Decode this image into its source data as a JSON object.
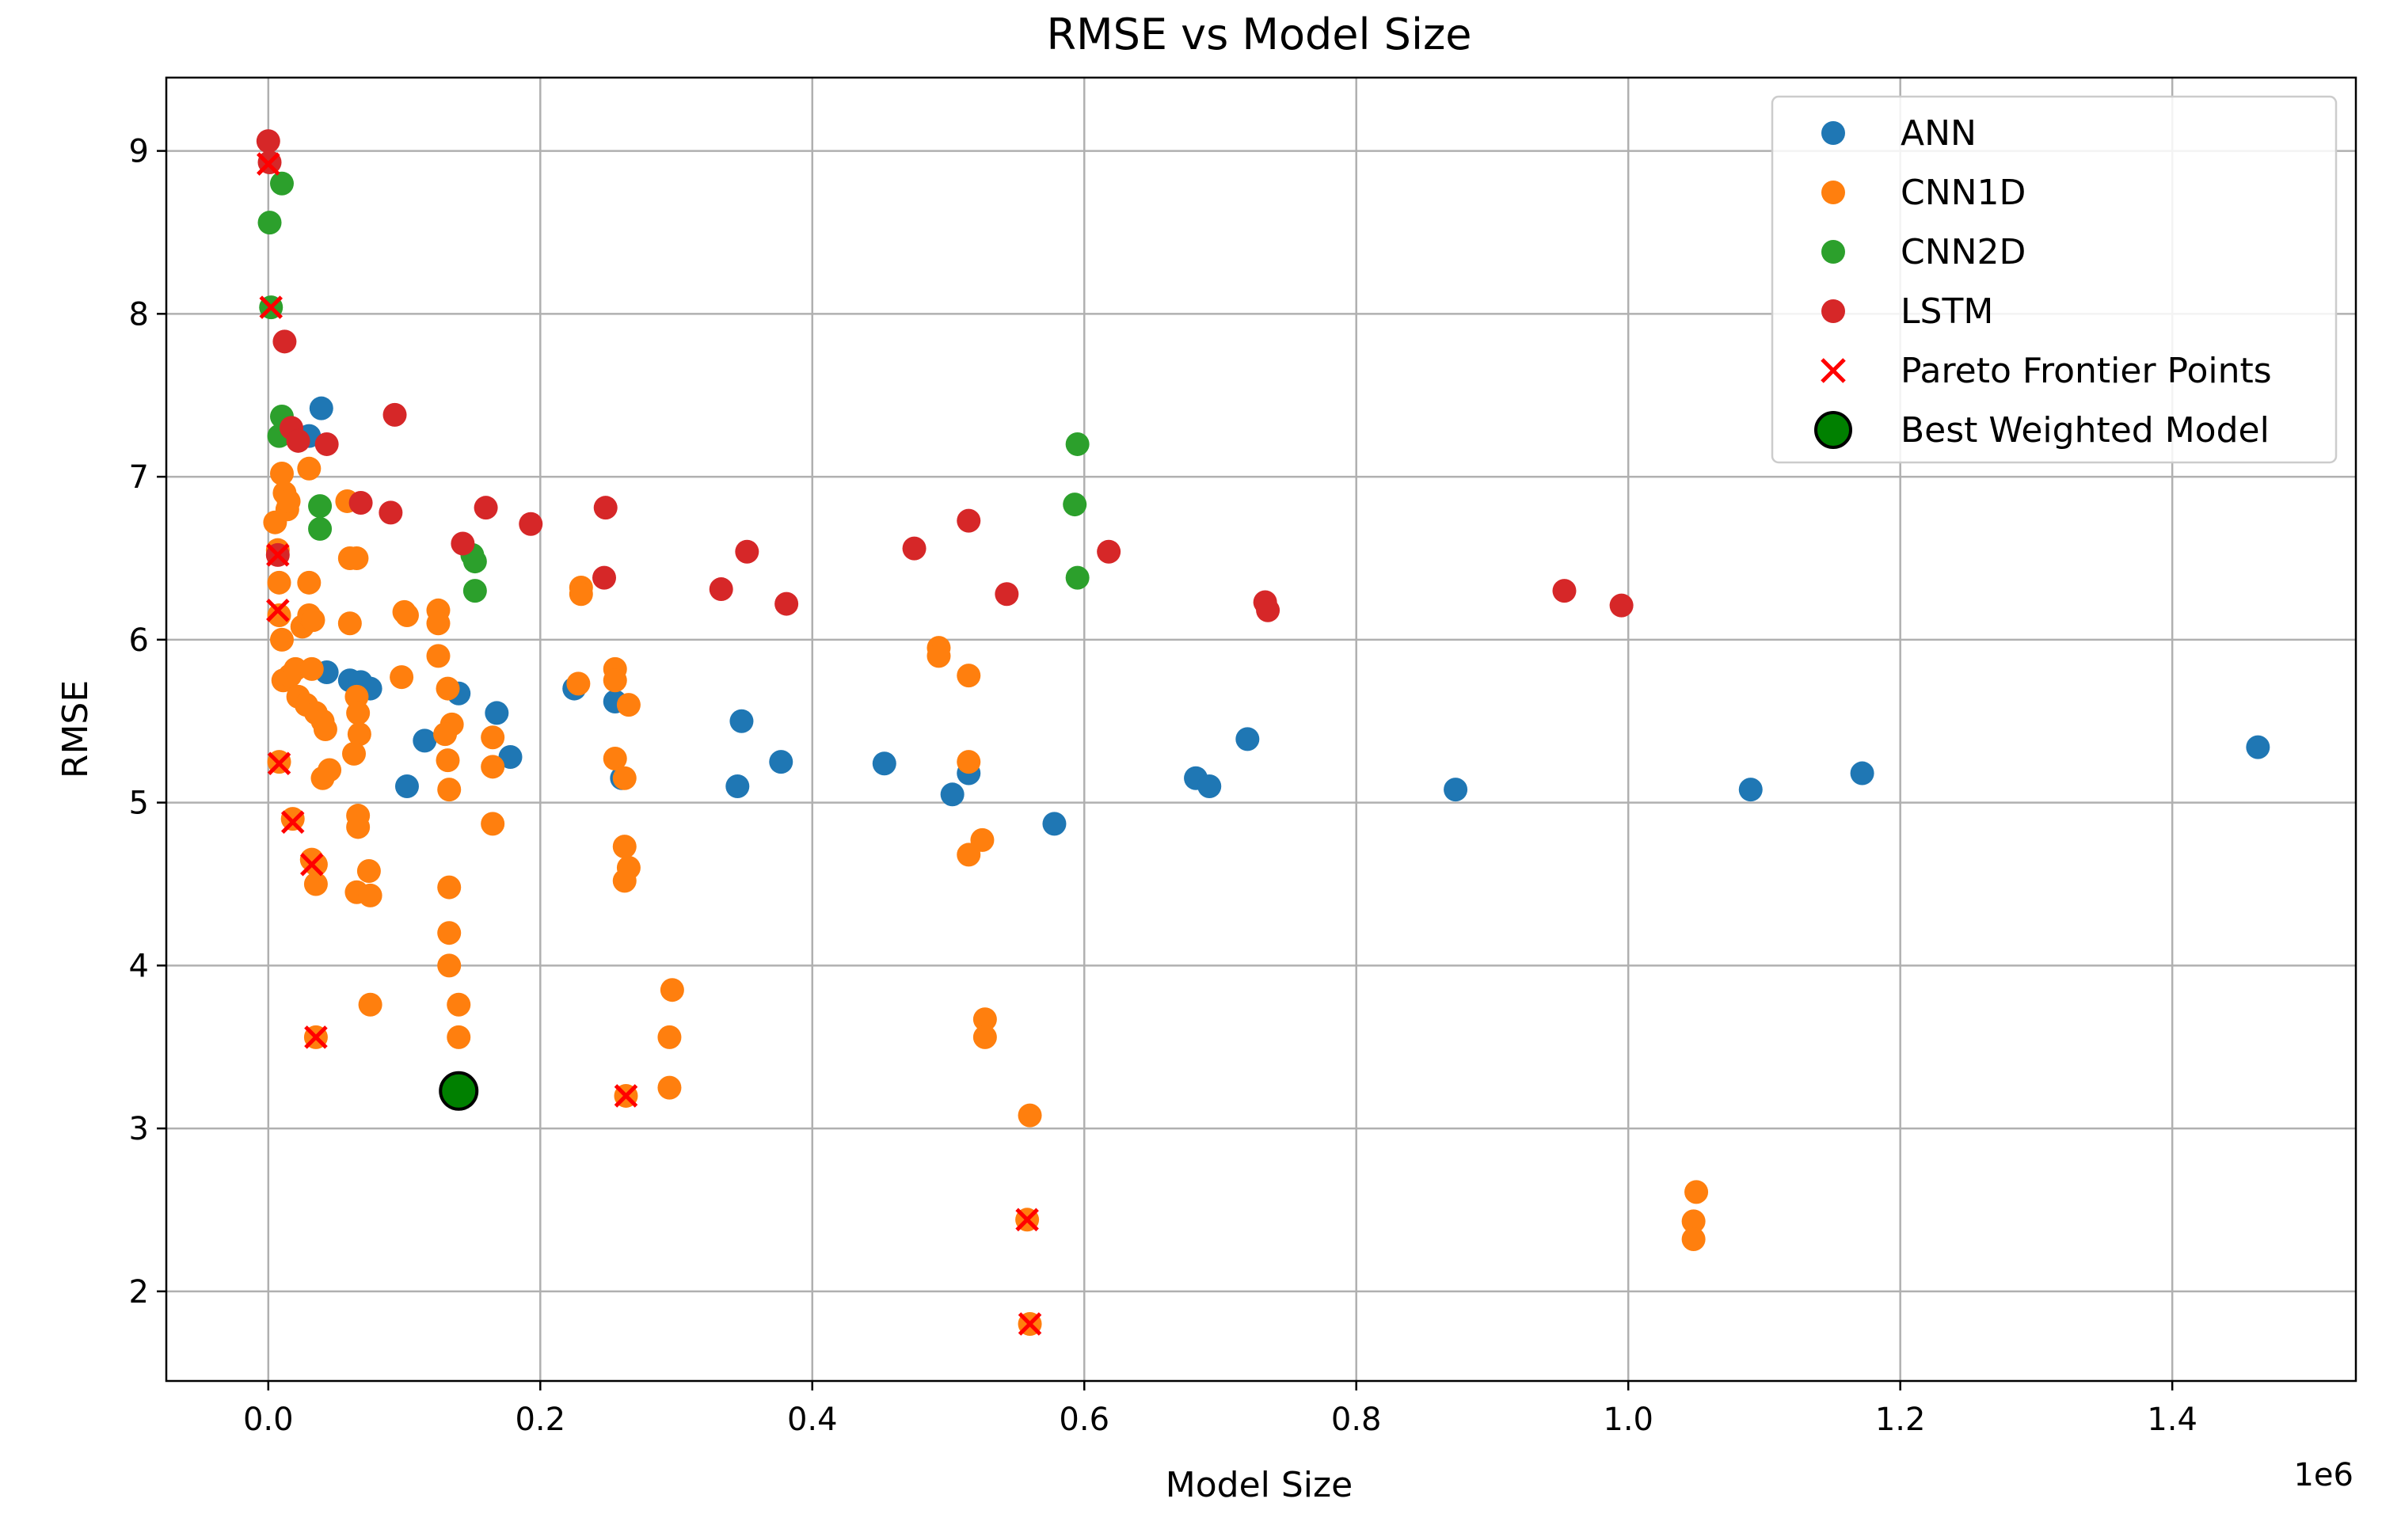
{
  "chart_data": {
    "type": "scatter",
    "title": "RMSE vs Model Size",
    "xlabel": "Model Size",
    "ylabel": "RMSE",
    "x_offset_text": "1e6",
    "xlim": [
      -0.075,
      1.535
    ],
    "ylim": [
      1.45,
      9.45
    ],
    "xticks": [
      0.0,
      0.2,
      0.4,
      0.6,
      0.8,
      1.0,
      1.2,
      1.4
    ],
    "xtick_labels": [
      "0.0",
      "0.2",
      "0.4",
      "0.6",
      "0.8",
      "1.0",
      "1.2",
      "1.4"
    ],
    "yticks": [
      2,
      3,
      4,
      5,
      6,
      7,
      8,
      9
    ],
    "ytick_labels": [
      "2",
      "3",
      "4",
      "5",
      "6",
      "7",
      "8",
      "9"
    ],
    "grid": true,
    "legend_position": "top-right",
    "series": [
      {
        "name": "ANN",
        "color": "#1f77b4",
        "marker": "circle",
        "points": [
          [
            0.039,
            7.42
          ],
          [
            0.03,
            7.25
          ],
          [
            0.043,
            5.8
          ],
          [
            0.06,
            5.75
          ],
          [
            0.068,
            5.74
          ],
          [
            0.075,
            5.7
          ],
          [
            0.115,
            5.38
          ],
          [
            0.102,
            5.1
          ],
          [
            0.14,
            5.67
          ],
          [
            0.168,
            5.55
          ],
          [
            0.178,
            5.28
          ],
          [
            0.225,
            5.7
          ],
          [
            0.255,
            5.62
          ],
          [
            0.26,
            5.15
          ],
          [
            0.348,
            5.5
          ],
          [
            0.345,
            5.1
          ],
          [
            0.377,
            5.25
          ],
          [
            0.453,
            5.24
          ],
          [
            0.503,
            5.05
          ],
          [
            0.515,
            5.18
          ],
          [
            0.578,
            4.87
          ],
          [
            0.682,
            5.15
          ],
          [
            0.692,
            5.1
          ],
          [
            0.72,
            5.39
          ],
          [
            0.873,
            5.08
          ],
          [
            1.09,
            5.08
          ],
          [
            1.172,
            5.18
          ],
          [
            1.463,
            5.34
          ]
        ]
      },
      {
        "name": "CNN1D",
        "color": "#ff7f0e",
        "marker": "circle",
        "points": [
          [
            0.005,
            6.72
          ],
          [
            0.007,
            6.55
          ],
          [
            0.008,
            6.35
          ],
          [
            0.008,
            6.15
          ],
          [
            0.01,
            7.02
          ],
          [
            0.012,
            6.9
          ],
          [
            0.014,
            6.8
          ],
          [
            0.015,
            6.85
          ],
          [
            0.01,
            6.0
          ],
          [
            0.011,
            5.75
          ],
          [
            0.016,
            5.78
          ],
          [
            0.02,
            5.82
          ],
          [
            0.022,
            5.65
          ],
          [
            0.025,
            6.08
          ],
          [
            0.028,
            5.6
          ],
          [
            0.03,
            6.35
          ],
          [
            0.03,
            7.05
          ],
          [
            0.03,
            6.15
          ],
          [
            0.033,
            6.12
          ],
          [
            0.032,
            5.82
          ],
          [
            0.035,
            5.55
          ],
          [
            0.04,
            5.5
          ],
          [
            0.042,
            5.45
          ],
          [
            0.04,
            5.15
          ],
          [
            0.045,
            5.2
          ],
          [
            0.058,
            6.85
          ],
          [
            0.06,
            6.1
          ],
          [
            0.06,
            6.5
          ],
          [
            0.065,
            6.5
          ],
          [
            0.065,
            5.65
          ],
          [
            0.066,
            5.55
          ],
          [
            0.067,
            5.42
          ],
          [
            0.063,
            5.3
          ],
          [
            0.066,
            4.92
          ],
          [
            0.066,
            4.85
          ],
          [
            0.065,
            4.45
          ],
          [
            0.074,
            4.58
          ],
          [
            0.075,
            4.43
          ],
          [
            0.035,
            4.5
          ],
          [
            0.035,
            4.62
          ],
          [
            0.075,
            3.76
          ],
          [
            0.1,
            6.17
          ],
          [
            0.102,
            6.15
          ],
          [
            0.098,
            5.77
          ],
          [
            0.125,
            6.18
          ],
          [
            0.125,
            6.1
          ],
          [
            0.125,
            5.9
          ],
          [
            0.132,
            5.7
          ],
          [
            0.135,
            5.48
          ],
          [
            0.13,
            5.42
          ],
          [
            0.132,
            5.26
          ],
          [
            0.133,
            5.08
          ],
          [
            0.133,
            4.48
          ],
          [
            0.133,
            4.2
          ],
          [
            0.133,
            4.0
          ],
          [
            0.14,
            3.76
          ],
          [
            0.14,
            3.56
          ],
          [
            0.165,
            5.4
          ],
          [
            0.165,
            5.22
          ],
          [
            0.165,
            4.87
          ],
          [
            0.23,
            6.32
          ],
          [
            0.23,
            6.28
          ],
          [
            0.228,
            5.73
          ],
          [
            0.255,
            5.82
          ],
          [
            0.255,
            5.75
          ],
          [
            0.255,
            5.27
          ],
          [
            0.262,
            5.15
          ],
          [
            0.265,
            5.6
          ],
          [
            0.262,
            4.73
          ],
          [
            0.265,
            4.6
          ],
          [
            0.262,
            4.52
          ],
          [
            0.297,
            3.85
          ],
          [
            0.295,
            3.56
          ],
          [
            0.295,
            3.25
          ],
          [
            0.493,
            5.95
          ],
          [
            0.493,
            5.9
          ],
          [
            0.515,
            5.78
          ],
          [
            0.515,
            5.25
          ],
          [
            0.515,
            4.68
          ],
          [
            0.525,
            4.77
          ],
          [
            0.527,
            3.67
          ],
          [
            0.527,
            3.56
          ],
          [
            0.56,
            3.08
          ],
          [
            0.558,
            2.44
          ],
          [
            0.56,
            1.8
          ],
          [
            1.05,
            2.61
          ],
          [
            1.048,
            2.43
          ],
          [
            1.048,
            2.32
          ],
          [
            0.018,
            4.9
          ],
          [
            0.032,
            4.65
          ],
          [
            0.008,
            5.25
          ],
          [
            0.035,
            3.56
          ],
          [
            0.263,
            3.2
          ]
        ]
      },
      {
        "name": "CNN2D",
        "color": "#2ca02c",
        "marker": "circle",
        "points": [
          [
            0.01,
            8.8
          ],
          [
            0.001,
            8.56
          ],
          [
            0.002,
            8.04
          ],
          [
            0.01,
            7.37
          ],
          [
            0.008,
            7.25
          ],
          [
            0.038,
            6.82
          ],
          [
            0.038,
            6.68
          ],
          [
            0.15,
            6.52
          ],
          [
            0.152,
            6.48
          ],
          [
            0.152,
            6.3
          ],
          [
            0.595,
            7.2
          ],
          [
            0.593,
            6.83
          ],
          [
            0.595,
            6.38
          ]
        ]
      },
      {
        "name": "LSTM",
        "color": "#d62728",
        "marker": "circle",
        "points": [
          [
            0.0,
            9.06
          ],
          [
            0.001,
            8.93
          ],
          [
            0.012,
            7.83
          ],
          [
            0.017,
            7.3
          ],
          [
            0.022,
            7.22
          ],
          [
            0.043,
            7.2
          ],
          [
            0.093,
            7.38
          ],
          [
            0.068,
            6.84
          ],
          [
            0.09,
            6.78
          ],
          [
            0.16,
            6.81
          ],
          [
            0.143,
            6.59
          ],
          [
            0.193,
            6.71
          ],
          [
            0.248,
            6.81
          ],
          [
            0.247,
            6.38
          ],
          [
            0.333,
            6.31
          ],
          [
            0.352,
            6.54
          ],
          [
            0.381,
            6.22
          ],
          [
            0.475,
            6.56
          ],
          [
            0.515,
            6.73
          ],
          [
            0.543,
            6.28
          ],
          [
            0.618,
            6.54
          ],
          [
            0.733,
            6.23
          ],
          [
            0.735,
            6.18
          ],
          [
            0.953,
            6.3
          ],
          [
            0.995,
            6.21
          ],
          [
            0.007,
            6.52
          ]
        ]
      }
    ],
    "pareto": {
      "name": "Pareto Frontier Points",
      "color": "#ff0000",
      "marker": "x",
      "points": [
        [
          0.0,
          8.92
        ],
        [
          0.002,
          8.04
        ],
        [
          0.007,
          6.52
        ],
        [
          0.007,
          6.18
        ],
        [
          0.008,
          5.24
        ],
        [
          0.018,
          4.88
        ],
        [
          0.032,
          4.62
        ],
        [
          0.035,
          3.56
        ],
        [
          0.263,
          3.2
        ],
        [
          0.558,
          2.44
        ],
        [
          0.56,
          1.8
        ]
      ]
    },
    "best": {
      "name": "Best Weighted Model",
      "color": "#008000",
      "marker": "circle-outlined",
      "point": [
        0.14,
        3.23
      ]
    }
  }
}
